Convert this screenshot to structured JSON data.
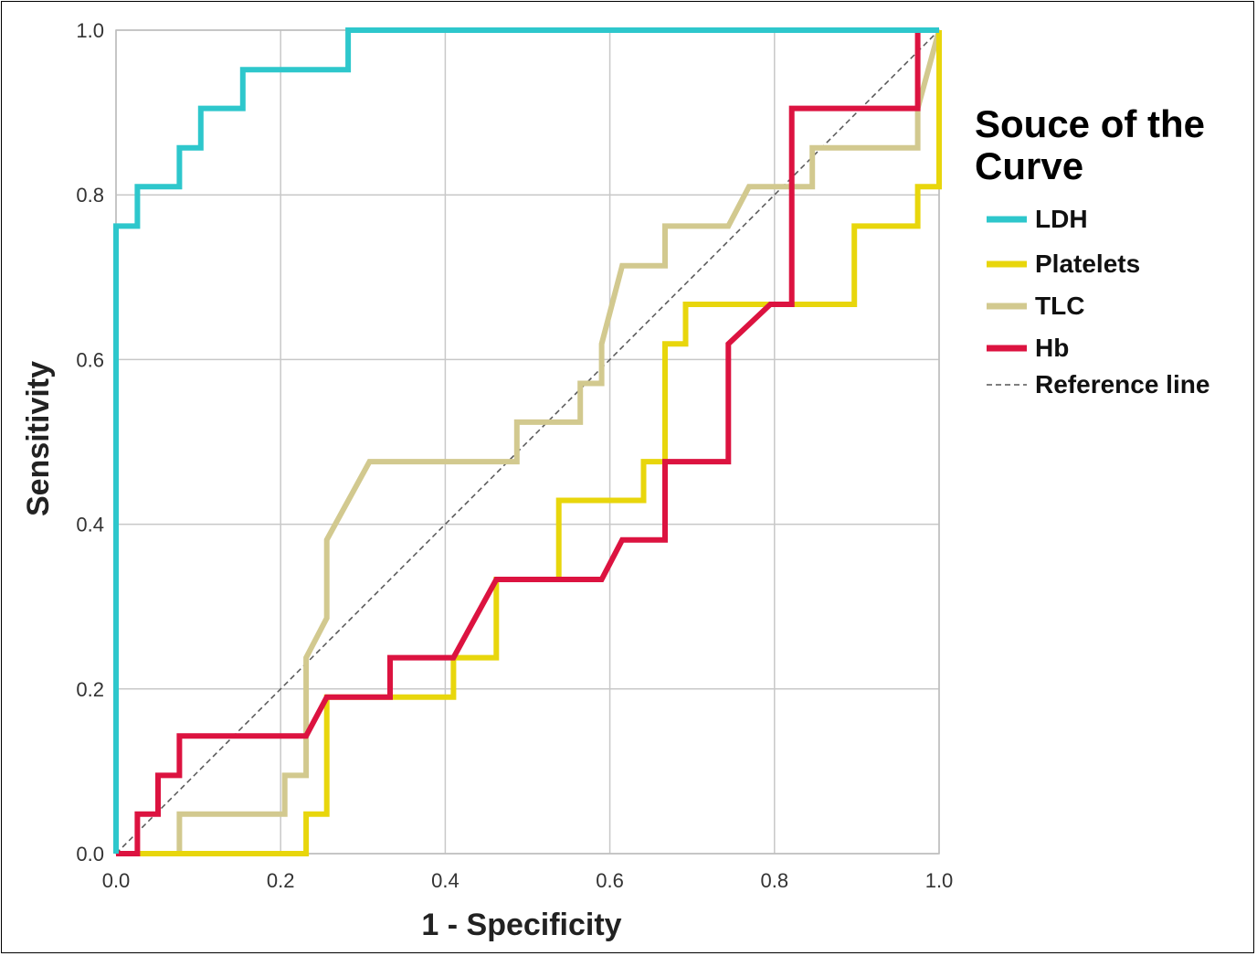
{
  "chart_data": {
    "type": "line",
    "title": "",
    "xlabel": "1 - Specificity",
    "ylabel": "Sensitivity",
    "xlim": [
      0,
      1
    ],
    "ylim": [
      0,
      1
    ],
    "x_ticks": [
      "0.0",
      "0.2",
      "0.4",
      "0.6",
      "0.8",
      "1.0"
    ],
    "y_ticks": [
      "0.0",
      "0.2",
      "0.4",
      "0.6",
      "0.8",
      "1.0"
    ],
    "grid": true,
    "legend": {
      "title": "Souce of the Curve",
      "placement": "right"
    },
    "series": [
      {
        "name": "LDH",
        "color": "#2ec7cc",
        "points": [
          [
            0,
            0
          ],
          [
            0,
            0.762
          ],
          [
            0.026,
            0.762
          ],
          [
            0.026,
            0.81
          ],
          [
            0.077,
            0.81
          ],
          [
            0.077,
            0.857
          ],
          [
            0.103,
            0.857
          ],
          [
            0.103,
            0.905
          ],
          [
            0.154,
            0.905
          ],
          [
            0.154,
            0.952
          ],
          [
            0.282,
            0.952
          ],
          [
            0.282,
            1.0
          ],
          [
            1.0,
            1.0
          ]
        ]
      },
      {
        "name": "Platelets",
        "color": "#e8d60c",
        "points": [
          [
            0,
            0
          ],
          [
            0.231,
            0
          ],
          [
            0.231,
            0.048
          ],
          [
            0.256,
            0.048
          ],
          [
            0.256,
            0.19
          ],
          [
            0.41,
            0.19
          ],
          [
            0.41,
            0.238
          ],
          [
            0.462,
            0.238
          ],
          [
            0.462,
            0.333
          ],
          [
            0.538,
            0.333
          ],
          [
            0.538,
            0.429
          ],
          [
            0.641,
            0.429
          ],
          [
            0.641,
            0.476
          ],
          [
            0.667,
            0.476
          ],
          [
            0.667,
            0.619
          ],
          [
            0.692,
            0.619
          ],
          [
            0.692,
            0.667
          ],
          [
            0.897,
            0.667
          ],
          [
            0.897,
            0.762
          ],
          [
            0.974,
            0.762
          ],
          [
            0.974,
            0.81
          ],
          [
            1.0,
            0.81
          ],
          [
            1.0,
            1.0
          ]
        ]
      },
      {
        "name": "TLC",
        "color": "#d2c98f",
        "points": [
          [
            0,
            0
          ],
          [
            0.077,
            0
          ],
          [
            0.077,
            0.048
          ],
          [
            0.205,
            0.048
          ],
          [
            0.205,
            0.095
          ],
          [
            0.231,
            0.095
          ],
          [
            0.231,
            0.238
          ],
          [
            0.256,
            0.286
          ],
          [
            0.256,
            0.381
          ],
          [
            0.308,
            0.476
          ],
          [
            0.487,
            0.476
          ],
          [
            0.487,
            0.524
          ],
          [
            0.564,
            0.524
          ],
          [
            0.564,
            0.571
          ],
          [
            0.59,
            0.571
          ],
          [
            0.59,
            0.619
          ],
          [
            0.615,
            0.714
          ],
          [
            0.667,
            0.714
          ],
          [
            0.667,
            0.762
          ],
          [
            0.744,
            0.762
          ],
          [
            0.769,
            0.81
          ],
          [
            0.846,
            0.81
          ],
          [
            0.846,
            0.857
          ],
          [
            0.974,
            0.857
          ],
          [
            0.974,
            0.905
          ],
          [
            1.0,
            1.0
          ]
        ]
      },
      {
        "name": "Hb",
        "color": "#dc1340",
        "points": [
          [
            0,
            0
          ],
          [
            0.026,
            0
          ],
          [
            0.026,
            0.048
          ],
          [
            0.051,
            0.048
          ],
          [
            0.051,
            0.095
          ],
          [
            0.077,
            0.095
          ],
          [
            0.077,
            0.143
          ],
          [
            0.231,
            0.143
          ],
          [
            0.256,
            0.19
          ],
          [
            0.333,
            0.19
          ],
          [
            0.333,
            0.238
          ],
          [
            0.41,
            0.238
          ],
          [
            0.462,
            0.333
          ],
          [
            0.59,
            0.333
          ],
          [
            0.615,
            0.381
          ],
          [
            0.667,
            0.381
          ],
          [
            0.667,
            0.476
          ],
          [
            0.744,
            0.476
          ],
          [
            0.744,
            0.619
          ],
          [
            0.795,
            0.667
          ],
          [
            0.821,
            0.667
          ],
          [
            0.821,
            0.905
          ],
          [
            0.974,
            0.905
          ],
          [
            0.974,
            1.0
          ],
          [
            1.0,
            1.0
          ]
        ]
      },
      {
        "name": "Reference line",
        "color": "#555555",
        "dashed": true,
        "points": [
          [
            0,
            0
          ],
          [
            1,
            1
          ]
        ]
      }
    ]
  }
}
